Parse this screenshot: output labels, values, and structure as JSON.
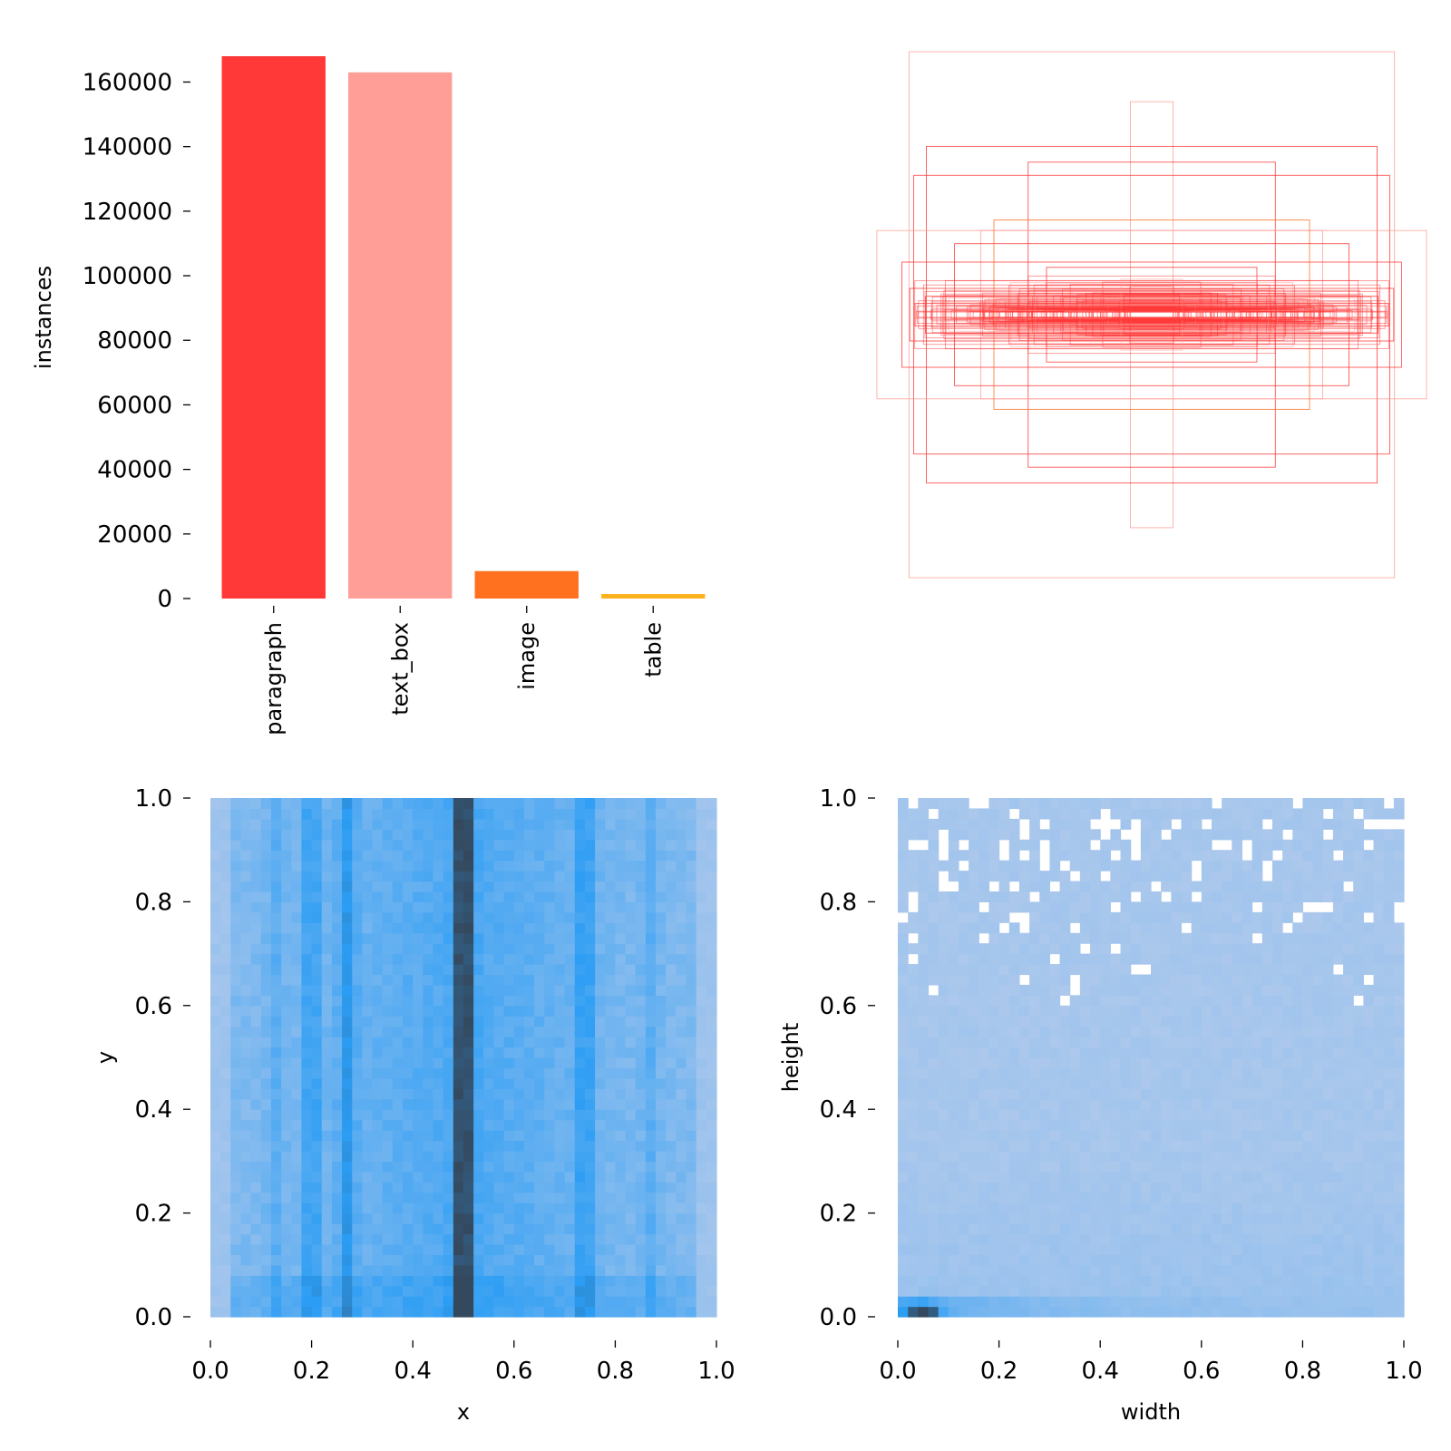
{
  "chart_data": [
    {
      "type": "bar",
      "categories": [
        "paragraph",
        "text_box",
        "image",
        "table"
      ],
      "values": [
        168000,
        163000,
        8500,
        1400
      ],
      "colors": [
        "#ff3838",
        "#ff9d97",
        "#ff701f",
        "#ffb21d"
      ],
      "ylabel": "instances",
      "ylim": [
        0,
        168000
      ],
      "yticks": [
        "0",
        "20000",
        "40000",
        "60000",
        "80000",
        "100000",
        "120000",
        "140000",
        "160000"
      ],
      "grid": false
    },
    {
      "type": "box_overlay",
      "description_note": "",
      "boxes": [
        {
          "w": 0.923,
          "h": 1.0,
          "color": "#ff9d97"
        },
        {
          "w": 0.081,
          "h": 0.81,
          "color": "#ff9d97"
        },
        {
          "w": 0.857,
          "h": 0.64,
          "color": "#ff3838"
        },
        {
          "w": 0.47,
          "h": 0.58,
          "color": "#ff3838"
        },
        {
          "w": 0.905,
          "h": 0.53,
          "color": "#ff3838"
        },
        {
          "w": 1.045,
          "h": 0.32,
          "color": "#ff9d97"
        },
        {
          "w": 0.65,
          "h": 0.32,
          "color": "#ff9d97"
        },
        {
          "w": 0.95,
          "h": 0.2,
          "color": "#ff3838"
        },
        {
          "w": 0.6,
          "h": 0.36,
          "color": "#ff701f"
        },
        {
          "w": 0.75,
          "h": 0.27,
          "color": "#ff3838"
        },
        {
          "w": 0.92,
          "h": 0.1,
          "color": "#ff3838"
        },
        {
          "w": 0.86,
          "h": 0.07,
          "color": "#ff3838"
        },
        {
          "w": 0.4,
          "h": 0.18,
          "color": "#ff3838"
        },
        {
          "w": 0.25,
          "h": 0.08,
          "color": "#ff3838"
        },
        {
          "w": 0.1,
          "h": 0.03,
          "color": "#ff3838"
        }
      ]
    },
    {
      "type": "heatmap",
      "xlabel": "x",
      "ylabel": "y",
      "xlim": [
        0.0,
        1.0
      ],
      "ylim": [
        0.0,
        1.0
      ],
      "xticks": [
        "0.0",
        "0.2",
        "0.4",
        "0.6",
        "0.8",
        "1.0"
      ],
      "yticks": [
        "0.0",
        "0.2",
        "0.4",
        "0.6",
        "0.8",
        "1.0"
      ],
      "high_density_x": [
        0.5,
        0.27,
        0.2,
        0.74,
        0.13,
        0.87
      ],
      "colors": [
        "#acc8ec",
        "#2b9df4",
        "#34495e"
      ]
    },
    {
      "type": "heatmap",
      "xlabel": "width",
      "ylabel": "height",
      "xlim": [
        0.0,
        1.0
      ],
      "ylim": [
        0.0,
        1.0
      ],
      "xticks": [
        "0.0",
        "0.2",
        "0.4",
        "0.6",
        "0.8",
        "1.0"
      ],
      "yticks": [
        "0.0",
        "0.2",
        "0.4",
        "0.6",
        "0.8",
        "1.0"
      ],
      "high_density_cell": {
        "width": 0.05,
        "height": 0.01
      },
      "colors": [
        "#acc8ec",
        "#2b9df4",
        "#34495e"
      ]
    }
  ]
}
